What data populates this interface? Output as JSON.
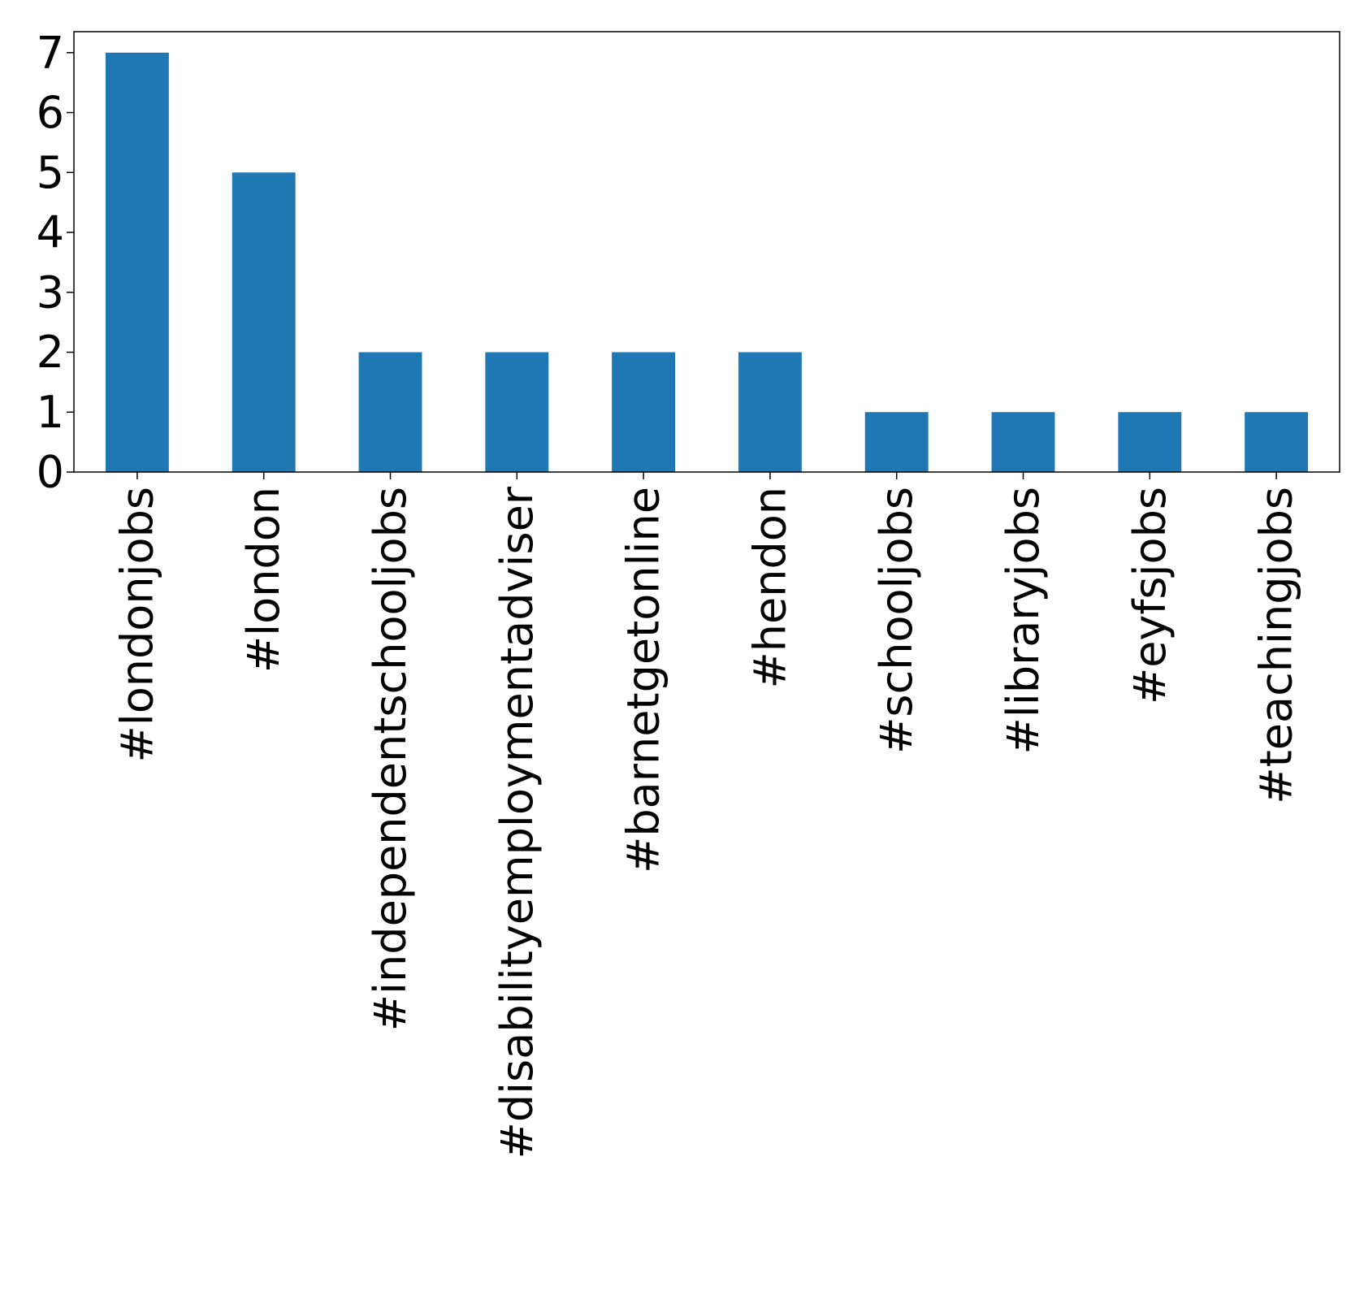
{
  "chart_data": {
    "type": "bar",
    "title": "",
    "xlabel": "",
    "ylabel": "",
    "categories": [
      "#londonjobs",
      "#london",
      "#independentschooljobs",
      "#disabilityemploymentadviser",
      "#barnetgetonline",
      "#hendon",
      "#schooljobs",
      "#libraryjobs",
      "#eyfsjobs",
      "#teachingjobs"
    ],
    "values": [
      7,
      5,
      2,
      2,
      2,
      2,
      1,
      1,
      1,
      1
    ],
    "ylim": [
      0,
      7.35
    ],
    "yticks": [
      "0",
      "1",
      "2",
      "3",
      "4",
      "5",
      "6",
      "7"
    ],
    "grid": false,
    "legend": "none",
    "colors": {
      "bar": "#1f77b4",
      "axis": "#000000",
      "background": "#ffffff"
    }
  }
}
